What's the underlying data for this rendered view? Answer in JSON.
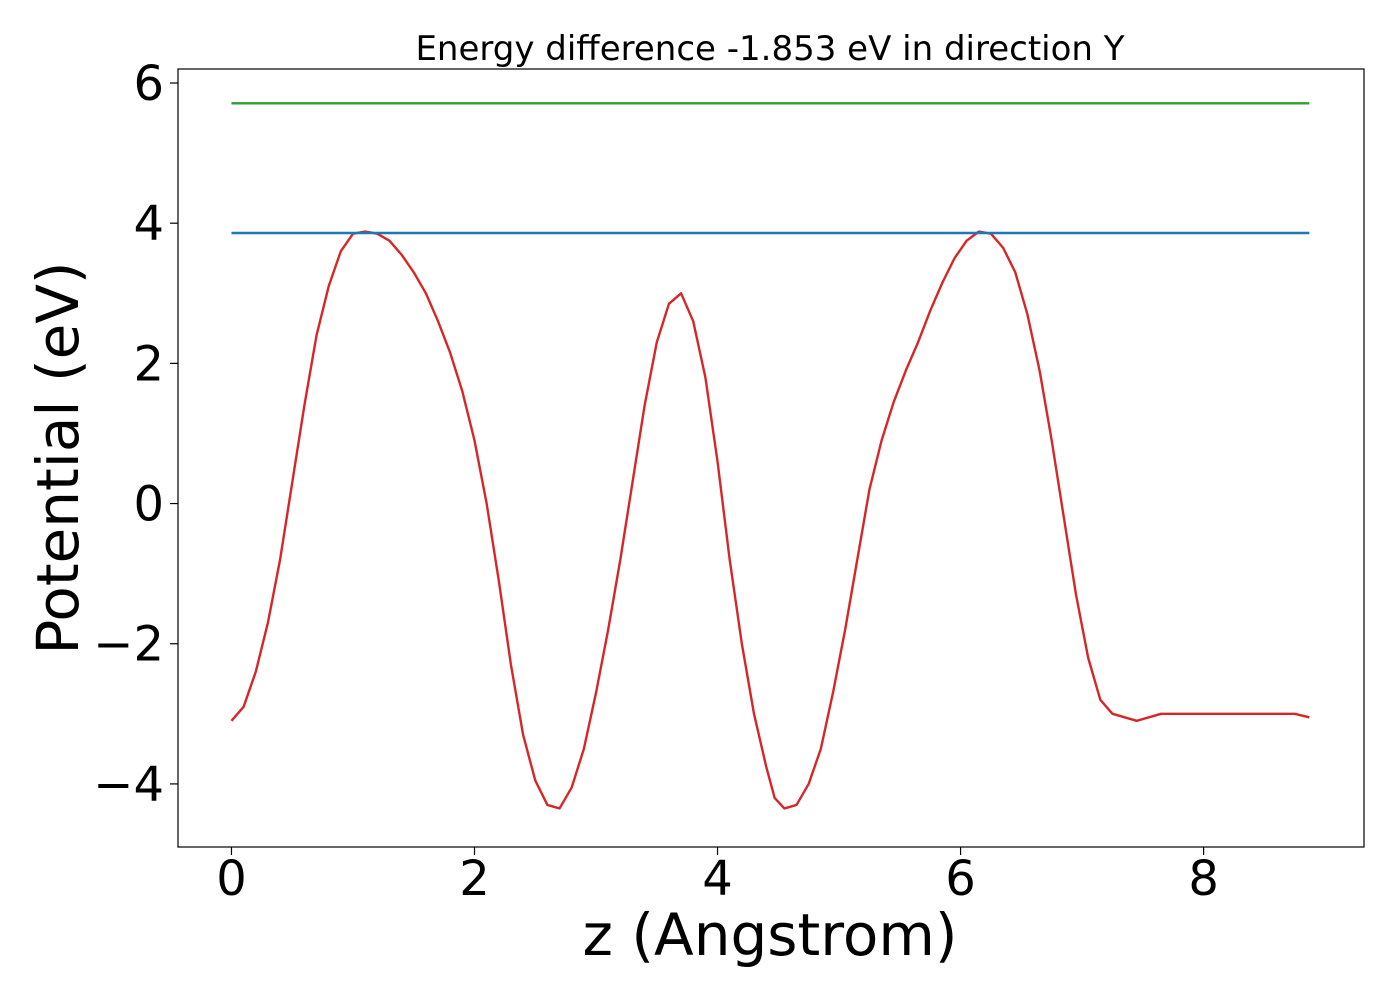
{
  "chart_data": {
    "type": "line",
    "title": "Energy difference -1.853 eV in direction Y",
    "xlabel": "z (Angstrom)",
    "ylabel": "Potential (eV)",
    "xlim": [
      -0.44,
      9.32
    ],
    "ylim": [
      -4.9,
      6.2
    ],
    "xticks": [
      0,
      2,
      4,
      6,
      8
    ],
    "xtick_labels": [
      "0",
      "2",
      "4",
      "6",
      "8"
    ],
    "yticks": [
      -4,
      -2,
      0,
      2,
      4,
      6
    ],
    "ytick_labels": [
      "−4",
      "−2",
      "0",
      "2",
      "4",
      "6"
    ],
    "grid": false,
    "series": [
      {
        "color": "#d62728",
        "x": [
          0,
          0.1,
          0.2,
          0.3,
          0.4,
          0.5,
          0.6,
          0.7,
          0.8,
          0.9,
          1.0,
          1.1,
          1.2,
          1.3,
          1.4,
          1.5,
          1.6,
          1.7,
          1.8,
          1.9,
          2.0,
          2.1,
          2.2,
          2.3,
          2.4,
          2.5,
          2.6,
          2.7,
          2.8,
          2.9,
          3.0,
          3.1,
          3.2,
          3.3,
          3.4,
          3.5,
          3.6,
          3.7,
          3.8,
          3.9,
          4.0,
          4.1,
          4.2,
          4.3,
          4.4,
          4.47,
          4.55,
          4.65,
          4.75,
          4.85,
          4.95,
          5.05,
          5.15,
          5.25,
          5.35,
          5.45,
          5.55,
          5.65,
          5.75,
          5.85,
          5.95,
          6.05,
          6.15,
          6.25,
          6.35,
          6.45,
          6.55,
          6.65,
          6.75,
          6.85,
          6.95,
          7.05,
          7.15,
          7.25,
          7.35,
          7.45,
          7.55,
          7.65,
          7.75,
          7.85,
          7.95,
          8.05,
          8.15,
          8.25,
          8.35,
          8.45,
          8.55,
          8.65,
          8.75,
          8.87
        ],
        "y": [
          -3.1,
          -2.9,
          -2.4,
          -1.7,
          -0.8,
          0.3,
          1.4,
          2.4,
          3.1,
          3.6,
          3.85,
          3.88,
          3.85,
          3.75,
          3.55,
          3.3,
          3.0,
          2.6,
          2.15,
          1.6,
          0.9,
          0.0,
          -1.1,
          -2.3,
          -3.3,
          -3.95,
          -4.3,
          -4.35,
          -4.05,
          -3.5,
          -2.7,
          -1.8,
          -0.8,
          0.3,
          1.4,
          2.3,
          2.85,
          3.0,
          2.6,
          1.8,
          0.6,
          -0.8,
          -2.0,
          -3.0,
          -3.75,
          -4.2,
          -4.35,
          -4.3,
          -4.0,
          -3.5,
          -2.7,
          -1.8,
          -0.8,
          0.2,
          0.9,
          1.45,
          1.9,
          2.3,
          2.75,
          3.15,
          3.5,
          3.75,
          3.88,
          3.85,
          3.65,
          3.3,
          2.7,
          1.9,
          0.9,
          -0.2,
          -1.3,
          -2.2,
          -2.8,
          -3.0,
          -3.05,
          -3.1,
          -3.05,
          -3.0,
          -3.0,
          -3.0,
          -3.0,
          -3.0,
          -3.0,
          -3.0,
          -3.0,
          -3.0,
          -3.0,
          -3.0,
          -3.0,
          -3.05
        ]
      },
      {
        "color": "#1f77b4",
        "x": [
          0,
          8.87
        ],
        "y": [
          3.86,
          3.86
        ]
      },
      {
        "color": "#2ca02c",
        "x": [
          0,
          8.87
        ],
        "y": [
          5.71,
          5.71
        ]
      }
    ]
  }
}
